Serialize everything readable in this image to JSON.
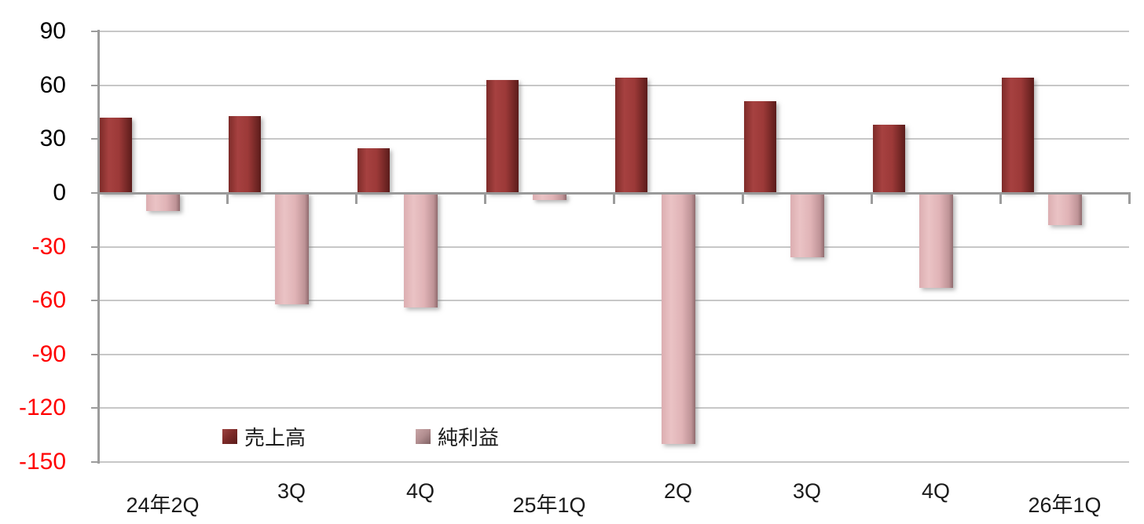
{
  "chart_data": {
    "type": "bar",
    "categories": [
      "24年2Q",
      "3Q",
      "4Q",
      "25年1Q",
      "2Q",
      "3Q",
      "4Q",
      "26年1Q"
    ],
    "series": [
      {
        "name": "売上高",
        "values": [
          42,
          43,
          25,
          63,
          64,
          51,
          38,
          64
        ],
        "color": "#9e3a38",
        "gradient": [
          "#7e2b29",
          "#a64140",
          "#9c3938",
          "#6f2523",
          "#5a1c1b"
        ]
      },
      {
        "name": "純利益",
        "values": [
          -10,
          -62,
          -64,
          -4,
          -140,
          -36,
          -53,
          -18
        ],
        "color": "#e3b6b8",
        "gradient": [
          "#dcaeb1",
          "#eac3c5",
          "#e0b3b6",
          "#be9396",
          "#8f6b6e"
        ]
      }
    ],
    "ylim": [
      -150,
      90
    ],
    "yticks": [
      90,
      60,
      30,
      0,
      -30,
      -60,
      -90,
      -120,
      -150
    ],
    "grid": true,
    "legend_position": "inside-bottom-left",
    "colors": {
      "positive_tick_label": "#000000",
      "negative_tick_label": "#ff0000",
      "gridline": "#c7c7c7",
      "axis": "#9c9c9c",
      "x_label": "#1a1a1a",
      "background": "#ffffff"
    }
  }
}
